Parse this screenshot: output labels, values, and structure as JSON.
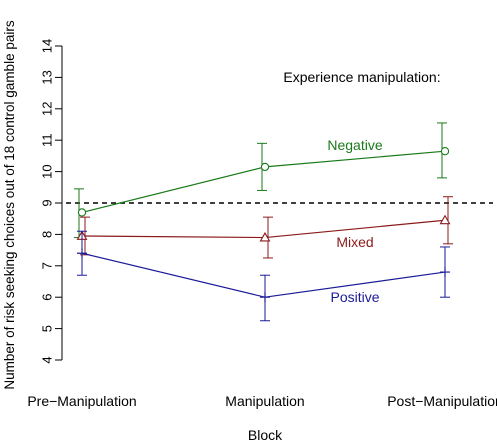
{
  "chart_data": {
    "type": "line",
    "title": "",
    "xlabel": "Block",
    "ylabel": "Number of risk seeking choices out of 18 control gamble pairs",
    "categories": [
      "Pre−Manipulation",
      "Manipulation",
      "Post−Manipulation"
    ],
    "ylim": [
      4,
      14
    ],
    "yticks": [
      4,
      5,
      6,
      7,
      8,
      9,
      10,
      11,
      12,
      13,
      14
    ],
    "reference_line": {
      "y": 9,
      "style": "dashed"
    },
    "legend_title": "Experience manipulation:",
    "series": [
      {
        "name": "Negative",
        "color": "#1a7a1a",
        "marker": "circle",
        "values": [
          8.7,
          10.15,
          10.65
        ],
        "error_low": [
          7.9,
          9.4,
          9.8
        ],
        "error_high": [
          9.45,
          10.9,
          11.55
        ]
      },
      {
        "name": "Mixed",
        "color": "#8b1a1a",
        "marker": "triangle",
        "values": [
          7.95,
          7.9,
          8.45
        ],
        "error_low": [
          7.35,
          7.25,
          7.7
        ],
        "error_high": [
          8.55,
          8.55,
          9.2
        ]
      },
      {
        "name": "Positive",
        "color": "#1a1a99",
        "marker": "plus",
        "values": [
          7.4,
          6.0,
          6.8
        ],
        "error_low": [
          6.7,
          5.25,
          6.0
        ],
        "error_high": [
          8.1,
          6.7,
          7.6
        ]
      }
    ]
  }
}
